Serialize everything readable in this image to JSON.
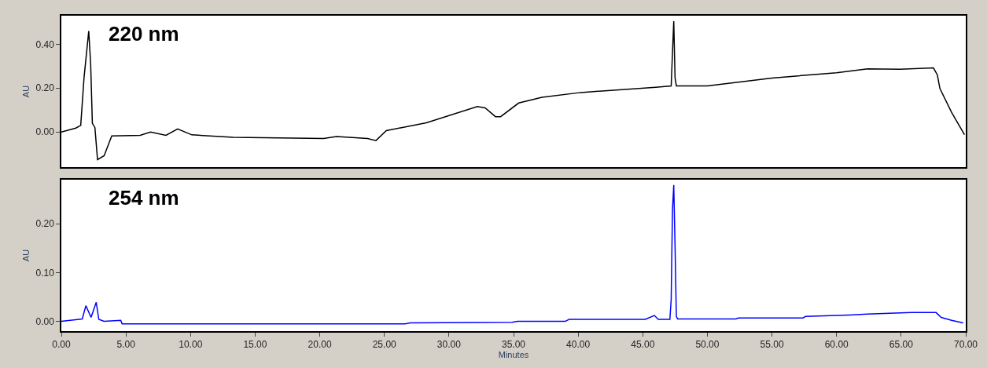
{
  "chart_data": [
    {
      "type": "line",
      "annotations": [
        "220 nm"
      ],
      "ylabel": "AU",
      "xlim": [
        0,
        70
      ],
      "ylim": [
        -0.16,
        0.53
      ],
      "yticks": [
        {
          "value": 0,
          "label": "0.00"
        },
        {
          "value": 0.2,
          "label": "0.20"
        },
        {
          "value": 0.4,
          "label": "0.40"
        }
      ],
      "tick_labels": "y",
      "line_style": "solid",
      "marker": "none",
      "series": [
        {
          "color": "#000000",
          "x": [
            0,
            1.12,
            1.5,
            1.76,
            2.12,
            2.27,
            2.4,
            2.6,
            2.8,
            3.31,
            3.9,
            6.1,
            6.9,
            8.1,
            9.0,
            10.1,
            13.3,
            20.3,
            21.3,
            23.7,
            24.35,
            25.15,
            28.25,
            32.2,
            32.8,
            33.6,
            34.0,
            35.4,
            37.2,
            40.2,
            46.0,
            47.2,
            47.3,
            47.4,
            47.5,
            47.6,
            50.0,
            55.0,
            60.0,
            62.4,
            64.9,
            67.5,
            67.8,
            68.0,
            68.9,
            69.9
          ],
          "values": [
            0,
            0.018,
            0.03,
            0.25,
            0.46,
            0.31,
            0.04,
            0.02,
            -0.126,
            -0.108,
            -0.018,
            -0.015,
            0,
            -0.015,
            0.014,
            -0.013,
            -0.024,
            -0.03,
            -0.021,
            -0.03,
            -0.039,
            0.006,
            0.042,
            0.116,
            0.11,
            0.07,
            0.07,
            0.132,
            0.158,
            0.18,
            0.204,
            0.21,
            0.36,
            0.505,
            0.246,
            0.21,
            0.21,
            0.246,
            0.27,
            0.288,
            0.286,
            0.292,
            0.26,
            0.198,
            0.09,
            -0.012
          ]
        }
      ]
    },
    {
      "type": "line",
      "annotations": [
        "254 nm"
      ],
      "ylabel": "AU",
      "xlabel": "Minutes",
      "xlim": [
        0,
        70
      ],
      "ylim": [
        -0.02,
        0.29
      ],
      "yticks": [
        {
          "value": 0,
          "label": "0.00"
        },
        {
          "value": 0.1,
          "label": "0.10"
        },
        {
          "value": 0.2,
          "label": "0.20"
        }
      ],
      "xticks": [
        {
          "value": 0,
          "label": "0.00"
        },
        {
          "value": 5,
          "label": "5.00"
        },
        {
          "value": 10,
          "label": "10.00"
        },
        {
          "value": 15,
          "label": "15.00"
        },
        {
          "value": 20,
          "label": "20.00"
        },
        {
          "value": 25,
          "label": "25.00"
        },
        {
          "value": 30,
          "label": "30.00"
        },
        {
          "value": 35,
          "label": "35.00"
        },
        {
          "value": 40,
          "label": "40.00"
        },
        {
          "value": 45,
          "label": "45.00"
        },
        {
          "value": 50,
          "label": "50.00"
        },
        {
          "value": 55,
          "label": "55.00"
        },
        {
          "value": 60,
          "label": "60.00"
        },
        {
          "value": 65,
          "label": "65.00"
        },
        {
          "value": 70,
          "label": "70.00"
        }
      ],
      "line_style": "solid",
      "marker": "none",
      "series": [
        {
          "color": "#0000ff",
          "x": [
            0,
            1.62,
            1.9,
            2.3,
            2.7,
            2.9,
            3.3,
            4.6,
            4.7,
            26.6,
            27.0,
            34.9,
            35.3,
            39.0,
            39.3,
            45.2,
            45.9,
            46.2,
            47.1,
            47.2,
            47.3,
            47.4,
            47.5,
            47.6,
            47.7,
            52.2,
            52.4,
            57.4,
            57.6,
            61.0,
            62.4,
            65.8,
            67.7,
            68.1,
            68.9,
            69.8
          ],
          "values": [
            0,
            0.005,
            0.032,
            0.008,
            0.039,
            0.004,
            0,
            0.002,
            -0.005,
            -0.005,
            -0.003,
            -0.002,
            0,
            0,
            0.004,
            0.004,
            0.012,
            0.004,
            0.004,
            0.045,
            0.228,
            0.279,
            0.153,
            0.01,
            0.005,
            0.005,
            0.007,
            0.007,
            0.01,
            0.013,
            0.015,
            0.018,
            0.018,
            0.008,
            0.002,
            -0.003
          ]
        }
      ]
    }
  ]
}
